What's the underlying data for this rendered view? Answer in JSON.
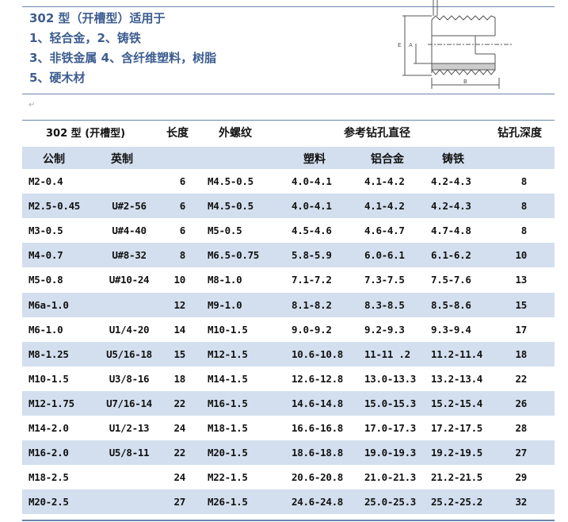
{
  "intro": [
    "302 型（开槽型）适用于",
    "1、轻合金，2、铸铁",
    "3、非铁金属 4、含纤维塑料，树脂",
    "5、硬木材"
  ],
  "diagram": {
    "labels": [
      "E",
      "A",
      "B"
    ]
  },
  "table": {
    "header1": {
      "type": "302 型 (开槽型)",
      "length": "长度",
      "thread": "外螺纹",
      "drill": "参考钻孔直径",
      "depth": "钻孔深度"
    },
    "header2": {
      "metric": "公制",
      "imperial": "英制",
      "plastic": "塑料",
      "aluminum": "铝合金",
      "iron": "铸铁"
    },
    "rows": [
      [
        "M2-0.4",
        "",
        "6",
        "M4.5-0.5",
        "4.0-4.1",
        "4.1-4.2",
        "4.2-4.3",
        "8"
      ],
      [
        "M2.5-0.45",
        "U#2-56",
        "6",
        "M4.5-0.5",
        "4.0-4.1",
        "4.1-4.2",
        "4.2-4.3",
        "8"
      ],
      [
        "M3-0.5",
        "U#4-40",
        "6",
        "M5-0.5",
        "4.5-4.6",
        "4.6-4.7",
        "4.7-4.8",
        "8"
      ],
      [
        "M4-0.7",
        "U#8-32",
        "8",
        "M6.5-0.75",
        "5.8-5.9",
        "6.0-6.1",
        "6.1-6.2",
        "10"
      ],
      [
        "M5-0.8",
        "U#10-24",
        "10",
        "M8-1.0",
        "7.1-7.2",
        "7.3-7.5",
        "7.5-7.6",
        "13"
      ],
      [
        "M6a-1.0",
        "",
        "12",
        "M9-1.0",
        "8.1-8.2",
        "8.3-8.5",
        "8.5-8.6",
        "15"
      ],
      [
        "M6-1.0",
        "U1/4-20",
        "14",
        "M10-1.5",
        "9.0-9.2",
        "9.2-9.3",
        "9.3-9.4",
        "17"
      ],
      [
        "M8-1.25",
        "U5/16-18",
        "15",
        "M12-1.5",
        "10.6-10.8",
        "11-11 .2",
        "11.2-11.4",
        "18"
      ],
      [
        "M10-1.5",
        "U3/8-16",
        "18",
        "M14-1.5",
        "12.6-12.8",
        "13.0-13.3",
        "13.2-13.4",
        "22"
      ],
      [
        "M12-1.75",
        "U7/16-14",
        "22",
        "M16-1.5",
        "14.6-14.8",
        "15.0-15.3",
        "15.2-15.4",
        "26"
      ],
      [
        "M14-2.0",
        "U1/2-13",
        "24",
        "M18-1.5",
        "16.6-16.8",
        "17.0-17.3",
        "17.2-17.5",
        "28"
      ],
      [
        "M16-2.0",
        "U5/8-11",
        "22",
        "M20-1.5",
        "18.6-18.8",
        "19.0-19.3",
        "19.2-19.5",
        "27"
      ],
      [
        "M18-2.5",
        "",
        "24",
        "M22-1.5",
        "20.6-20.8",
        "21.0-21.3",
        "21.2-21.5",
        "29"
      ],
      [
        "M20-2.5",
        "",
        "27",
        "M26-1.5",
        "24.6-24.8",
        "25.0-25.3",
        "25.2-25.2",
        "32"
      ]
    ]
  },
  "colors": {
    "accent": "#3d5d8f",
    "row_shade": "#d3dfee"
  }
}
